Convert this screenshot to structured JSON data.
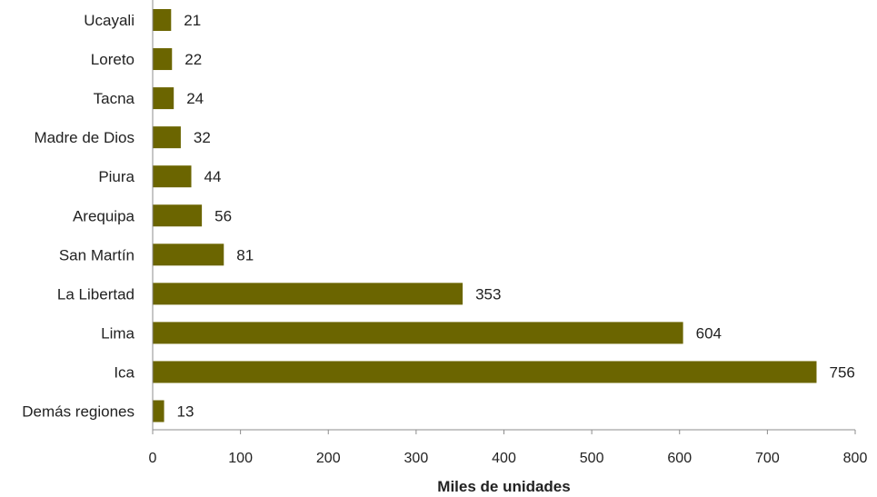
{
  "chart_data": {
    "type": "bar",
    "orientation": "horizontal",
    "categories": [
      "Ucayali",
      "Loreto",
      "Tacna",
      "Madre de Dios",
      "Piura",
      "Arequipa",
      "San Martín",
      "La Libertad",
      "Lima",
      "Ica",
      "Demás regiones"
    ],
    "values": [
      21,
      22,
      24,
      32,
      44,
      56,
      81,
      353,
      604,
      756,
      13
    ],
    "title": "",
    "xlabel": "Miles de unidades",
    "ylabel": "",
    "xlim": [
      0,
      800
    ],
    "xticks": [
      0,
      100,
      200,
      300,
      400,
      500,
      600,
      700,
      800
    ],
    "grid": false,
    "data_labels": true,
    "colors": {
      "bar": "#6b6500"
    }
  }
}
